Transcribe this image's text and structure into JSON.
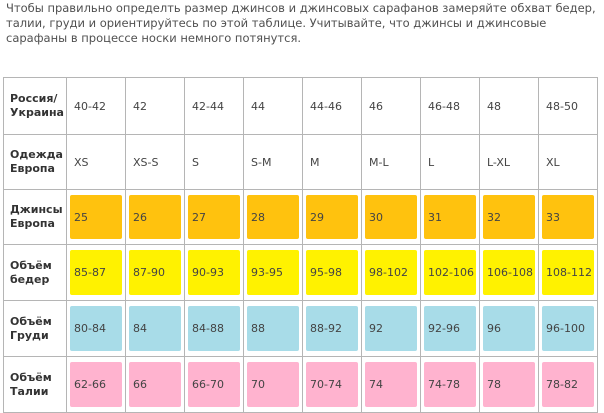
{
  "intro_text": "Чтобы правильно определть размер джинсов и джинсовых сарафанов замеряйте обхват бедер, талии, груди и ориентируйтесь по этой таблице. Учитывайте, что джинсы и джинсовые сарафаны в процессе носки немного потянутся.",
  "table": {
    "rows": [
      {
        "id": "russia",
        "label": "Россия/ Украина",
        "color": "",
        "values": [
          "40-42",
          "42",
          "42-44",
          "44",
          "44-46",
          "46",
          "46-48",
          "48",
          "48-50"
        ]
      },
      {
        "id": "europe-clothing",
        "label": "Одежда Европа",
        "color": "",
        "values": [
          "XS",
          "XS-S",
          "S",
          "S-M",
          "M",
          "M-L",
          "L",
          "L-XL",
          "XL"
        ]
      },
      {
        "id": "jeans-europe",
        "label": "Джинсы Европа",
        "color": "#ffc20e",
        "values": [
          "25",
          "26",
          "27",
          "28",
          "29",
          "30",
          "31",
          "32",
          "33"
        ]
      },
      {
        "id": "hips",
        "label": "Объём бедер",
        "color": "#fff200",
        "values": [
          "85-87",
          "87-90",
          "90-93",
          "93-95",
          "95-98",
          "98-102",
          "102-106",
          "106-108",
          "108-112"
        ]
      },
      {
        "id": "chest",
        "label": "Объём Груди",
        "color": "#a8dce8",
        "values": [
          "80-84",
          "84",
          "84-88",
          "88",
          "88-92",
          "92",
          "92-96",
          "96",
          "96-100"
        ]
      },
      {
        "id": "waist",
        "label": "Объём Талии",
        "color": "#ffb3cf",
        "values": [
          "62-66",
          "66",
          "66-70",
          "70",
          "70-74",
          "74",
          "74-78",
          "78",
          "78-82"
        ]
      }
    ]
  }
}
